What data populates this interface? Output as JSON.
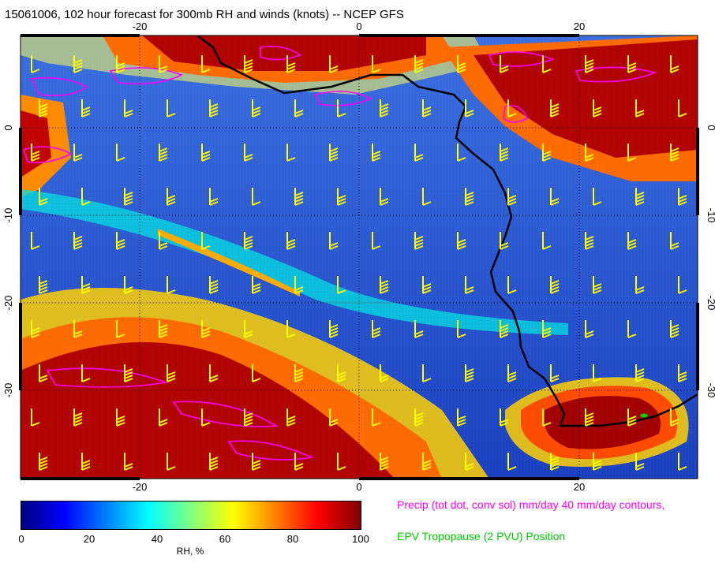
{
  "header": {
    "title": "15061006, 102 hour forecast for 300mb RH and winds (knots) -- NCEP GFS"
  },
  "map": {
    "type": "meteorological-field-map",
    "field": "300mb relative humidity",
    "overlays": [
      "wind barbs (knots)",
      "precipitation contours",
      "EPV tropopause position",
      "coastline"
    ],
    "x_axis_labels": [
      "-20",
      "0",
      "20"
    ],
    "y_axis_labels": [
      "0",
      "-10",
      "-20",
      "-30"
    ],
    "colors": {
      "wind_barbs": "#ffff00",
      "precip_contours": "#ff00ff",
      "tropopause": "#00cc00",
      "coastline": "#000000"
    }
  },
  "colorbar": {
    "ticks": [
      "0",
      "20",
      "40",
      "60",
      "80",
      "100"
    ],
    "label": "RH, %",
    "stops": [
      "#00007f",
      "#0000ff",
      "#007fff",
      "#00ffff",
      "#7fff7f",
      "#ffff00",
      "#ff7f00",
      "#ff0000",
      "#7f0000"
    ]
  },
  "legend": {
    "precip": "Precip (tot dot, conv sol) mm/day 40 mm/day contours,",
    "tropopause": "EPV Tropopause (2 PVU) Position",
    "precip_color": "#ff00ff",
    "tropopause_color": "#00cc00"
  }
}
